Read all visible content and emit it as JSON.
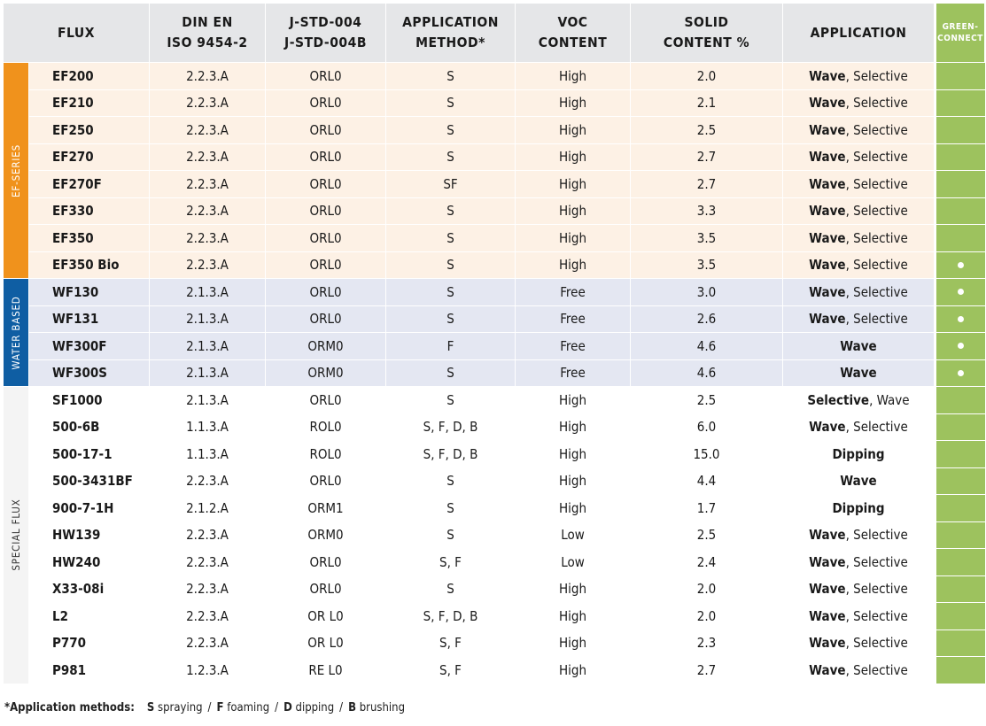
{
  "headers": {
    "flux": "FLUX",
    "din_line1": "DIN EN",
    "din_line2": "ISO 9454-2",
    "jstd_line1": "J-STD-004",
    "jstd_line2": "J-STD-004B",
    "method_line1": "APPLICATION",
    "method_line2": "METHOD*",
    "voc_line1": "VOC",
    "voc_line2": "CONTENT",
    "solid_line1": "SOLID",
    "solid_line2": "CONTENT %",
    "application": "APPLICATION",
    "green_line1": "GREEN-",
    "green_line2": "CONNECT"
  },
  "groups": {
    "ef": "EF-SERIES",
    "wf": "WATER BASED",
    "sp": "SPECIAL FLUX"
  },
  "green_dot": "●",
  "rows": [
    {
      "name": "EF200",
      "din": "2.2.3.A",
      "jstd": "ORL0",
      "method": "S",
      "voc": "High",
      "solid": "2.0",
      "app_bold": "Wave",
      "app_rest": ", Selective",
      "green": ""
    },
    {
      "name": "EF210",
      "din": "2.2.3.A",
      "jstd": "ORL0",
      "method": "S",
      "voc": "High",
      "solid": "2.1",
      "app_bold": "Wave",
      "app_rest": ", Selective",
      "green": ""
    },
    {
      "name": "EF250",
      "din": "2.2.3.A",
      "jstd": "ORL0",
      "method": "S",
      "voc": "High",
      "solid": "2.5",
      "app_bold": "Wave",
      "app_rest": ", Selective",
      "green": ""
    },
    {
      "name": "EF270",
      "din": "2.2.3.A",
      "jstd": "ORL0",
      "method": "S",
      "voc": "High",
      "solid": "2.7",
      "app_bold": "Wave",
      "app_rest": ", Selective",
      "green": ""
    },
    {
      "name": "EF270F",
      "din": "2.2.3.A",
      "jstd": "ORL0",
      "method": "SF",
      "voc": "High",
      "solid": "2.7",
      "app_bold": "Wave",
      "app_rest": ", Selective",
      "green": ""
    },
    {
      "name": "EF330",
      "din": "2.2.3.A",
      "jstd": "ORL0",
      "method": "S",
      "voc": "High",
      "solid": "3.3",
      "app_bold": "Wave",
      "app_rest": ", Selective",
      "green": ""
    },
    {
      "name": "EF350",
      "din": "2.2.3.A",
      "jstd": "ORL0",
      "method": "S",
      "voc": "High",
      "solid": "3.5",
      "app_bold": "Wave",
      "app_rest": ", Selective",
      "green": ""
    },
    {
      "name": "EF350 Bio",
      "din": "2.2.3.A",
      "jstd": "ORL0",
      "method": "S",
      "voc": "High",
      "solid": "3.5",
      "app_bold": "Wave",
      "app_rest": ", Selective",
      "green": "dot"
    },
    {
      "name": "WF130",
      "din": "2.1.3.A",
      "jstd": "ORL0",
      "method": "S",
      "voc": "Free",
      "solid": "3.0",
      "app_bold": "Wave",
      "app_rest": ", Selective",
      "green": "dot"
    },
    {
      "name": "WF131",
      "din": "2.1.3.A",
      "jstd": "ORL0",
      "method": "S",
      "voc": "Free",
      "solid": "2.6",
      "app_bold": "Wave",
      "app_rest": ", Selective",
      "green": "dot"
    },
    {
      "name": "WF300F",
      "din": "2.1.3.A",
      "jstd": "ORM0",
      "method": "F",
      "voc": "Free",
      "solid": "4.6",
      "app_bold": "Wave",
      "app_rest": "",
      "green": "dot"
    },
    {
      "name": "WF300S",
      "din": "2.1.3.A",
      "jstd": "ORM0",
      "method": "S",
      "voc": "Free",
      "solid": "4.6",
      "app_bold": "Wave",
      "app_rest": "",
      "green": "dot"
    },
    {
      "name": "SF1000",
      "din": "2.1.3.A",
      "jstd": "ORL0",
      "method": "S",
      "voc": "High",
      "solid": "2.5",
      "app_bold": "Selective",
      "app_rest": ", Wave",
      "green": ""
    },
    {
      "name": "500-6B",
      "din": "1.1.3.A",
      "jstd": "ROL0",
      "method": "S, F, D, B",
      "voc": "High",
      "solid": "6.0",
      "app_bold": "Wave",
      "app_rest": ", Selective",
      "green": ""
    },
    {
      "name": "500-17-1",
      "din": "1.1.3.A",
      "jstd": "ROL0",
      "method": "S, F, D, B",
      "voc": "High",
      "solid": "15.0",
      "app_bold": "Dipping",
      "app_rest": "",
      "green": ""
    },
    {
      "name": "500-3431BF",
      "din": "2.2.3.A",
      "jstd": "ORL0",
      "method": "S",
      "voc": "High",
      "solid": "4.4",
      "app_bold": "Wave",
      "app_rest": "",
      "green": ""
    },
    {
      "name": "900-7-1H",
      "din": "2.1.2.A",
      "jstd": "ORM1",
      "method": "S",
      "voc": "High",
      "solid": "1.7",
      "app_bold": "Dipping",
      "app_rest": "",
      "green": ""
    },
    {
      "name": "HW139",
      "din": "2.2.3.A",
      "jstd": "ORM0",
      "method": "S",
      "voc": "Low",
      "solid": "2.5",
      "app_bold": "Wave",
      "app_rest": ", Selective",
      "green": ""
    },
    {
      "name": "HW240",
      "din": "2.2.3.A",
      "jstd": "ORL0",
      "method": "S, F",
      "voc": "Low",
      "solid": "2.4",
      "app_bold": "Wave",
      "app_rest": ", Selective",
      "green": ""
    },
    {
      "name": "X33-08i",
      "din": "2.2.3.A",
      "jstd": "ORL0",
      "method": "S",
      "voc": "High",
      "solid": "2.0",
      "app_bold": "Wave",
      "app_rest": ", Selective",
      "green": ""
    },
    {
      "name": "L2",
      "din": "2.2.3.A",
      "jstd": "OR L0",
      "method": "S, F, D, B",
      "voc": "High",
      "solid": "2.0",
      "app_bold": "Wave",
      "app_rest": ", Selective",
      "green": ""
    },
    {
      "name": "P770",
      "din": "2.2.3.A",
      "jstd": "OR L0",
      "method": "S, F",
      "voc": "High",
      "solid": "2.3",
      "app_bold": "Wave",
      "app_rest": ", Selective",
      "green": ""
    },
    {
      "name": "P981",
      "din": "1.2.3.A",
      "jstd": "RE L0",
      "method": "S, F",
      "voc": "High",
      "solid": "2.7",
      "app_bold": "Wave",
      "app_rest": ", Selective",
      "green": ""
    }
  ],
  "footnote": {
    "lead": "*Application methods:",
    "items": [
      {
        "key": "S",
        "text": "spraying"
      },
      {
        "key": "F",
        "text": "foaming"
      },
      {
        "key": "D",
        "text": "dipping"
      },
      {
        "key": "B",
        "text": "brushing"
      }
    ],
    "separator": "/"
  },
  "colors": {
    "ef_group": "#f0921c",
    "wf_group": "#0f5ea3",
    "green_connect": "#9dc25e",
    "header_bg": "#e5e6e8",
    "ef_row_bg": "#fdf1e5",
    "wf_row_bg": "#e4e7f2"
  }
}
